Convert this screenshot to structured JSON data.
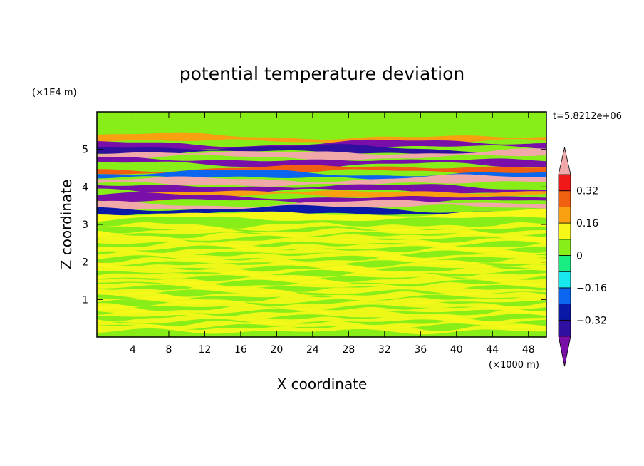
{
  "chart_data": {
    "type": "heatmap",
    "title": "potential temperature deviation",
    "xlabel": "X coordinate",
    "ylabel": "Z coordinate",
    "x_unit": "(×1000 m)",
    "y_unit": "(×1E4 m)",
    "time_label": "t=5.8212e+06",
    "xlim": [
      0,
      50
    ],
    "ylim": [
      0,
      6
    ],
    "x_ticks": [
      "4",
      "8",
      "12",
      "16",
      "20",
      "24",
      "28",
      "32",
      "36",
      "40",
      "44",
      "48"
    ],
    "x_tick_values": [
      4,
      8,
      12,
      16,
      20,
      24,
      28,
      32,
      36,
      40,
      44,
      48
    ],
    "y_ticks": [
      "1",
      "2",
      "3",
      "4",
      "5"
    ],
    "y_tick_values": [
      1,
      2,
      3,
      4,
      5
    ],
    "colorbar": {
      "levels": [
        -0.4,
        -0.32,
        -0.24,
        -0.16,
        -0.08,
        0,
        0.08,
        0.16,
        0.24,
        0.32,
        0.4
      ],
      "colors": [
        "#7a0ea8",
        "#2e0fa0",
        "#0a18a8",
        "#0a66ee",
        "#18e8ee",
        "#18ee82",
        "#88ee18",
        "#f8f818",
        "#f8a010",
        "#f06010",
        "#f01818",
        "#f0a8a8"
      ],
      "tick_labels": [
        "0.32",
        "0.16",
        "0",
        "−0.16",
        "−0.32"
      ],
      "tick_values": [
        0.32,
        0.16,
        0,
        -0.16,
        -0.32
      ]
    },
    "bands": [
      {
        "z": 5.27,
        "value": 0.2
      },
      {
        "z": 5.1,
        "value": -0.44
      },
      {
        "z": 4.98,
        "value": -0.36
      },
      {
        "z": 4.85,
        "value": 0.44
      },
      {
        "z": 4.65,
        "value": -0.44
      },
      {
        "z": 4.45,
        "value": 0.3
      },
      {
        "z": 4.3,
        "value": -0.2
      },
      {
        "z": 4.15,
        "value": 0.44
      },
      {
        "z": 3.95,
        "value": -0.4
      },
      {
        "z": 3.8,
        "value": 0.24
      },
      {
        "z": 3.67,
        "value": -0.4
      },
      {
        "z": 3.5,
        "value": 0.44
      },
      {
        "z": 3.35,
        "value": -0.3
      },
      {
        "z": 3.22,
        "value": 0.1
      }
    ]
  }
}
